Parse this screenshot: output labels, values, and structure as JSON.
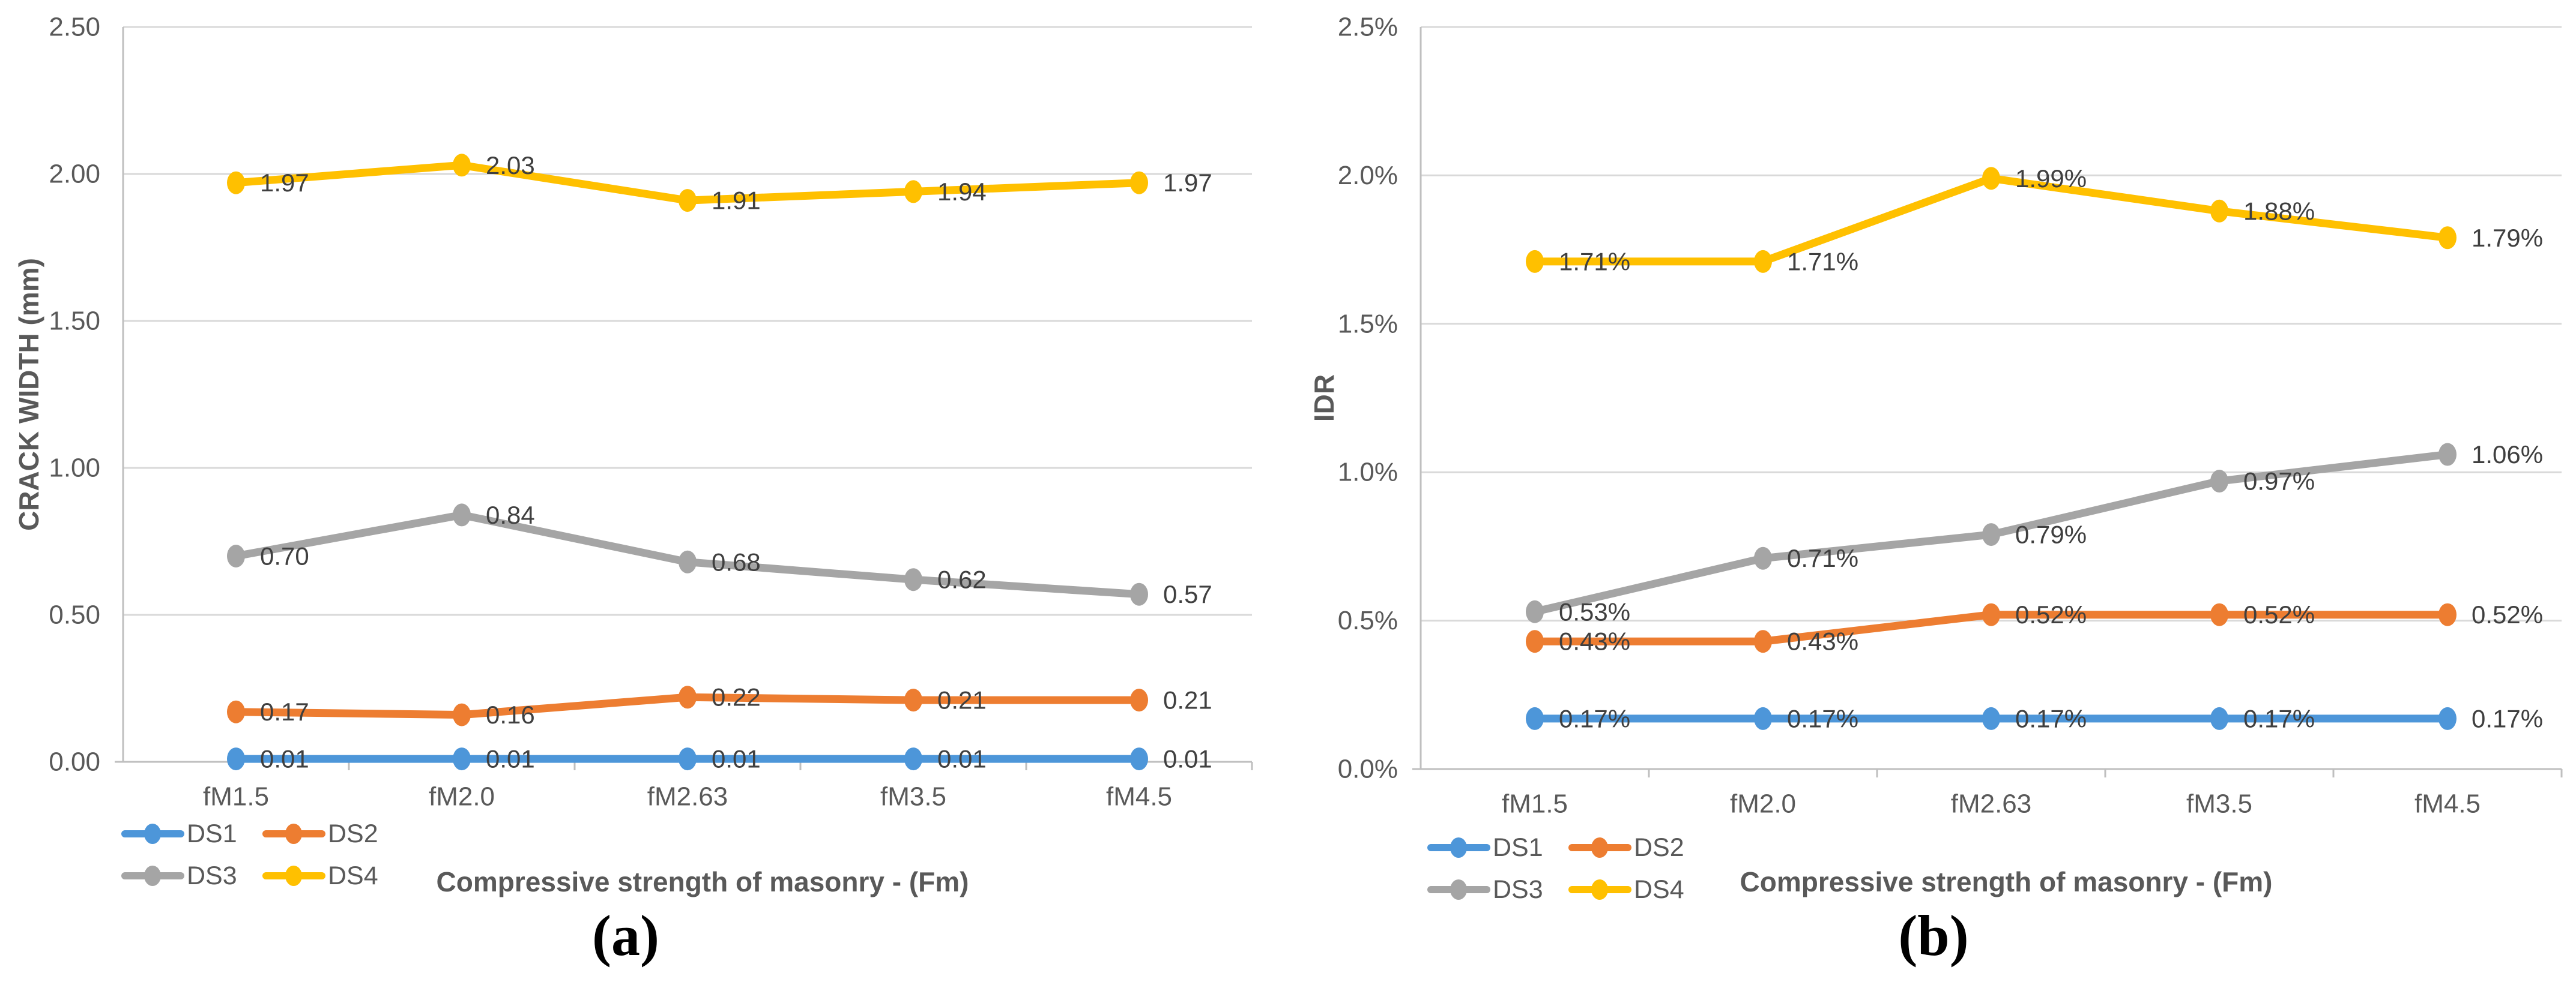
{
  "chart_data": [
    {
      "id": "a",
      "type": "line",
      "caption": "(a)",
      "ylabel": "CRACK WIDTH (mm)",
      "xlabel": "Compressive strength of masonry - (Fm)",
      "ylim": [
        0,
        2.5
      ],
      "y_tick_labels": [
        "0.00",
        "0.50",
        "1.00",
        "1.50",
        "2.00",
        "2.50"
      ],
      "categories": [
        "fM1.5",
        "fM2.0",
        "fM2.63",
        "fM3.5",
        "fM4.5"
      ],
      "grid": true,
      "legend_position": "bottom-left",
      "series": [
        {
          "name": "DS1",
          "color": "#4D96D9",
          "values": [
            0.01,
            0.01,
            0.01,
            0.01,
            0.01
          ],
          "labels": [
            "0.01",
            "0.01",
            "0.01",
            "0.01",
            "0.01"
          ]
        },
        {
          "name": "DS2",
          "color": "#ED7D31",
          "values": [
            0.17,
            0.16,
            0.22,
            0.21,
            0.21
          ],
          "labels": [
            "0.17",
            "0.16",
            "0.22",
            "0.21",
            "0.21"
          ]
        },
        {
          "name": "DS3",
          "color": "#A5A5A5",
          "values": [
            0.7,
            0.84,
            0.68,
            0.62,
            0.57
          ],
          "labels": [
            "0.70",
            "0.84",
            "0.68",
            "0.62",
            "0.57"
          ]
        },
        {
          "name": "DS4",
          "color": "#FFC000",
          "values": [
            1.97,
            2.03,
            1.91,
            1.94,
            1.97
          ],
          "labels": [
            "1.97",
            "2.03",
            "1.91",
            "1.94",
            "1.97"
          ]
        }
      ]
    },
    {
      "id": "b",
      "type": "line",
      "caption": "(b)",
      "ylabel": "IDR",
      "xlabel": "Compressive strength of masonry - (Fm)",
      "ylim_percent": [
        0,
        2.5
      ],
      "y_tick_labels": [
        "0.0%",
        "0.5%",
        "1.0%",
        "1.5%",
        "2.0%",
        "2.5%"
      ],
      "categories": [
        "fM1.5",
        "fM2.0",
        "fM2.63",
        "fM3.5",
        "fM4.5"
      ],
      "grid": true,
      "legend_position": "bottom-left",
      "series": [
        {
          "name": "DS1",
          "color": "#4D96D9",
          "values": [
            0.17,
            0.17,
            0.17,
            0.17,
            0.17
          ],
          "labels": [
            "0.17%",
            "0.17%",
            "0.17%",
            "0.17%",
            "0.17%"
          ]
        },
        {
          "name": "DS2",
          "color": "#ED7D31",
          "values": [
            0.43,
            0.43,
            0.52,
            0.52,
            0.52
          ],
          "labels": [
            "0.43%",
            "0.43%",
            "0.52%",
            "0.52%",
            "0.52%"
          ]
        },
        {
          "name": "DS3",
          "color": "#A5A5A5",
          "values": [
            0.53,
            0.71,
            0.79,
            0.97,
            1.06
          ],
          "labels": [
            "0.53%",
            "0.71%",
            "0.79%",
            "0.97%",
            "1.06%"
          ]
        },
        {
          "name": "DS4",
          "color": "#FFC000",
          "values": [
            1.71,
            1.71,
            1.99,
            1.88,
            1.79
          ],
          "labels": [
            "1.71%",
            "1.71%",
            "1.99%",
            "1.88%",
            "1.79%"
          ]
        }
      ]
    }
  ],
  "style_colors": {
    "gridline": "#D9D9D9",
    "axis_line": "#BFBFBF",
    "tick_text": "#595959",
    "axis_title_text": "#595959",
    "data_label_text": "#3F3F3F",
    "caption_text": "#000000"
  }
}
